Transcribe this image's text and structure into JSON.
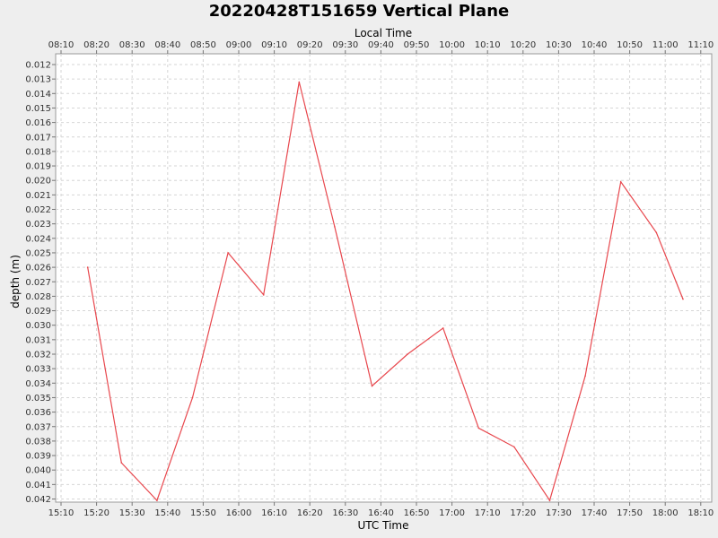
{
  "chart_data": {
    "type": "line",
    "title": "20220428T151659 Vertical Plane",
    "xlabel": "UTC Time",
    "x2label": "Local Time",
    "ylabel": "depth (m)",
    "x_tick_labels": [
      "15:10",
      "15:20",
      "15:30",
      "15:40",
      "15:50",
      "16:00",
      "16:10",
      "16:20",
      "16:30",
      "16:40",
      "16:50",
      "17:00",
      "17:10",
      "17:20",
      "17:30",
      "17:40",
      "17:50",
      "18:00",
      "18:10"
    ],
    "x2_tick_labels": [
      "08:10",
      "08:20",
      "08:30",
      "08:40",
      "08:50",
      "09:00",
      "09:10",
      "09:20",
      "09:30",
      "09:40",
      "09:50",
      "10:00",
      "10:10",
      "10:20",
      "10:30",
      "10:40",
      "10:50",
      "11:00",
      "11:10"
    ],
    "y_tick_labels": [
      "0.012",
      "0.013",
      "0.014",
      "0.015",
      "0.016",
      "0.017",
      "0.018",
      "0.019",
      "0.020",
      "0.021",
      "0.022",
      "0.023",
      "0.024",
      "0.025",
      "0.026",
      "0.027",
      "0.028",
      "0.029",
      "0.030",
      "0.031",
      "0.032",
      "0.033",
      "0.034",
      "0.035",
      "0.036",
      "0.037",
      "0.038",
      "0.039",
      "0.040",
      "0.041",
      "0.042"
    ],
    "ylim": [
      0.012,
      0.042
    ],
    "y_inverted": true,
    "grid": true,
    "series": [
      {
        "color": "#e8474d",
        "x": [
          "15:17:30",
          "15:27:00",
          "15:37:00",
          "15:47:00",
          "15:57:00",
          "16:07:00",
          "16:17:00",
          "16:27:00",
          "16:37:30",
          "16:47:30",
          "16:57:30",
          "17:07:30",
          "17:17:30",
          "17:27:30",
          "17:37:30",
          "17:47:30",
          "17:57:30",
          "18:05:00"
        ],
        "y": [
          0.026,
          0.0395,
          0.0421,
          0.035,
          0.025,
          0.0279,
          0.0132,
          0.0232,
          0.0342,
          0.032,
          0.0302,
          0.0371,
          0.0384,
          0.0421,
          0.0335,
          0.0201,
          0.0236,
          0.0282
        ]
      }
    ]
  }
}
